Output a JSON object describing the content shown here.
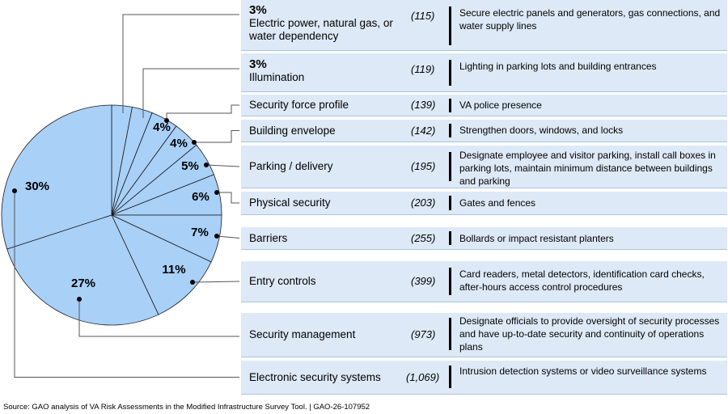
{
  "chart_data": {
    "type": "pie",
    "categories": [
      "Electric power, natural gas, or water dependency",
      "Illumination",
      "Security force profile",
      "Building envelope",
      "Parking / delivery",
      "Physical security",
      "Barriers",
      "Entry controls",
      "Security management",
      "Electronic security systems"
    ],
    "values": [
      3,
      3,
      4,
      4,
      5,
      6,
      7,
      11,
      27,
      30
    ],
    "percent_labels": [
      "3%",
      "3%",
      "4%",
      "4%",
      "5%",
      "6%",
      "7%",
      "11%",
      "27%",
      "30%"
    ],
    "counts": [
      "(115)",
      "(119)",
      "(139)",
      "(142)",
      "(195)",
      "(203)",
      "(255)",
      "(399)",
      "(973)",
      "(1,069)"
    ],
    "descriptions": [
      "Secure electric panels and generators, gas connections, and water supply lines",
      "Lighting in parking lots and building entrances",
      "VA police presence",
      "Strengthen doors, windows, and locks",
      "Designate employee and visitor parking, install call boxes in parking lots, maintain minimum distance between buildings and parking",
      "Gates and fences",
      "Bollards or impact resistant planters",
      "Card readers, metal detectors, identification card checks, after-hours access control procedures",
      "Designate officials to provide oversight of security processes and have up-to-date security and continuity of operations plans",
      "Intrusion detection systems or video surveillance systems"
    ],
    "colors": {
      "slice": "#a9d0f7",
      "edge": "#1a1a1a",
      "row": "#dde9f7"
    }
  },
  "source": "Source: GAO analysis of VA Risk Assessments in the Modified Infrastructure Survey Tool.  |  GAO-26-107952"
}
